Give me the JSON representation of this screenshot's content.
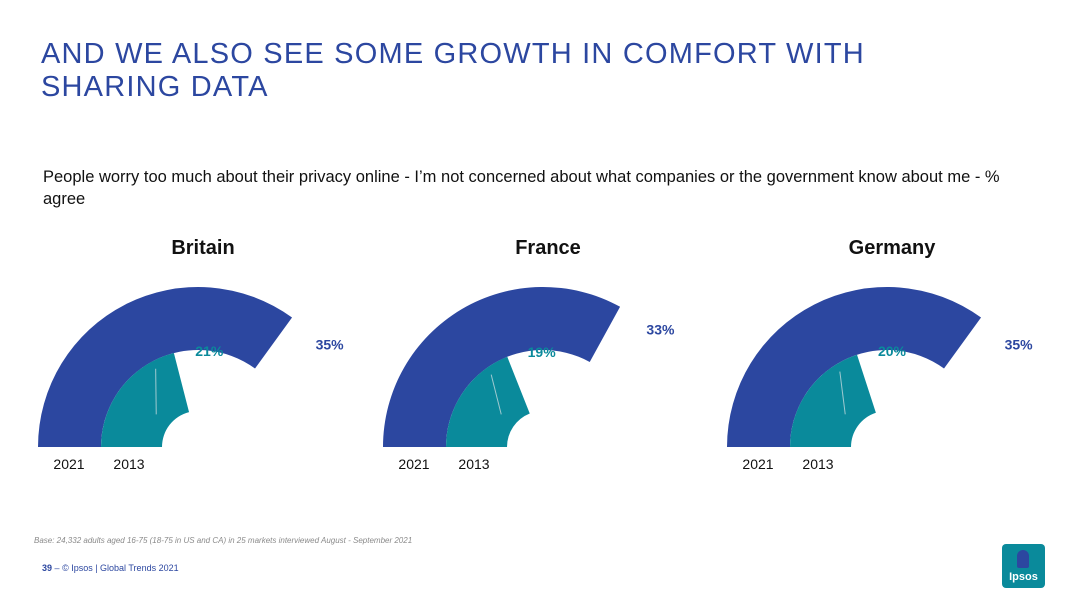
{
  "title": "AND WE ALSO SEE SOME GROWTH IN COMFORT WITH SHARING DATA",
  "question": "People worry too much about their privacy online - I’m not concerned about what companies or the government know about me - % agree",
  "base_note": "Base: 24,332 adults aged 16-75 (18-75 in US and CA) in 25 markets interviewed August - September 2021",
  "footer": {
    "page": "39",
    "dash": "–",
    "text": "© Ipsos | Global Trends 2021"
  },
  "logo": {
    "text": "Ipsos"
  },
  "colors": {
    "outer": "#2c47a0",
    "inner": "#0a8a9b"
  },
  "chart_data": {
    "type": "radial-bar",
    "scale_max": 50,
    "series_names": [
      "2021",
      "2013"
    ],
    "panels": [
      {
        "country": "Britain",
        "outer_label": "2021",
        "inner_label": "2013",
        "value_2021": 35,
        "value_2013": 21,
        "label_2021": "35%",
        "label_2013": "21%"
      },
      {
        "country": "France",
        "outer_label": "2021",
        "inner_label": "2013",
        "value_2021": 33,
        "value_2013": 19,
        "label_2021": "33%",
        "label_2013": "19%"
      },
      {
        "country": "Germany",
        "outer_label": "2021",
        "inner_label": "2013",
        "value_2021": 35,
        "value_2013": 20,
        "label_2021": "35%",
        "label_2013": "20%"
      }
    ]
  }
}
